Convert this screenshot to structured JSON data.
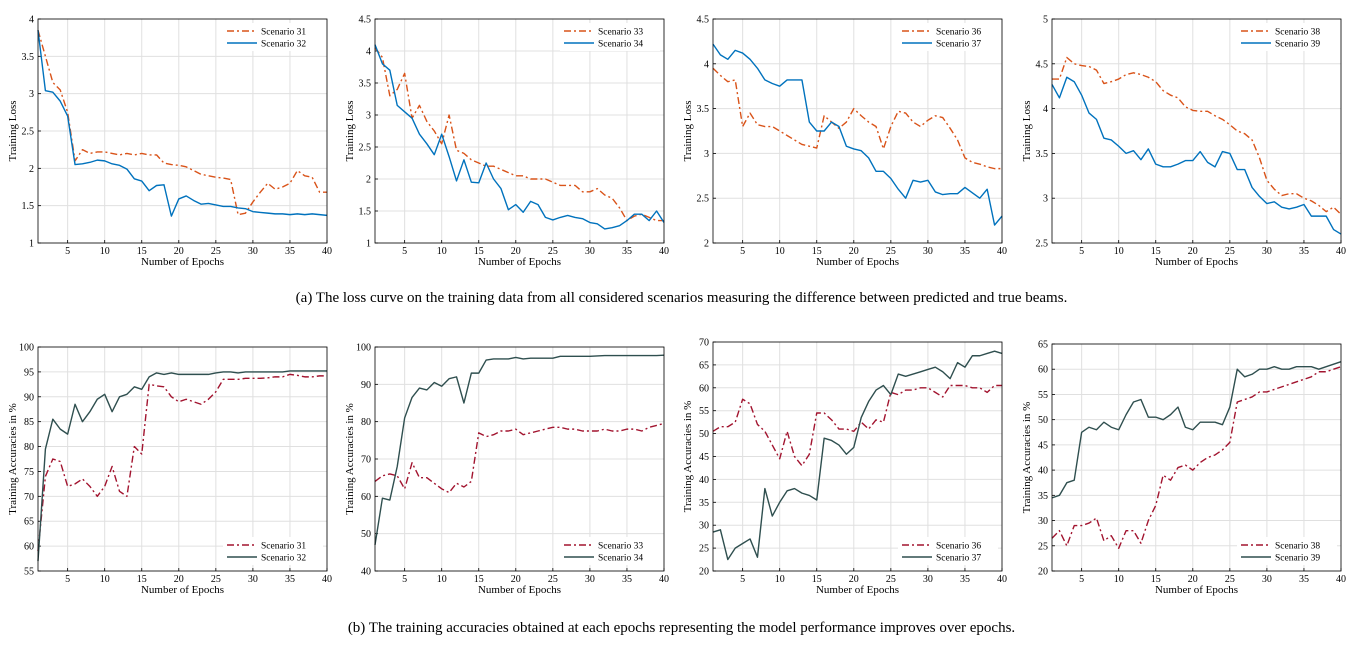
{
  "colors": {
    "scenario_a_odd": "#d95319",
    "scenario_a_even": "#0072bd",
    "scenario_b_odd": "#a2142f",
    "scenario_b_even": "#2f4f4f",
    "grid": "#e0e0e0"
  },
  "captions": {
    "a": "(a) The loss curve on the training data from all considered scenarios measuring the difference between predicted and true beams.",
    "b": "(b) The training accuracies obtained at each epochs representing the model performance improves over epochs."
  },
  "chart_data": [
    {
      "type": "line",
      "xlabel": "Number of Epochs",
      "ylabel": "Training Loss",
      "xlim": [
        1,
        40
      ],
      "ylim": [
        1,
        4
      ],
      "xticks": [
        5,
        10,
        15,
        20,
        25,
        30,
        35,
        40
      ],
      "yticks": [
        1,
        1.5,
        2,
        2.5,
        3,
        3.5,
        4
      ],
      "legend": "top-right",
      "grid": true,
      "series": [
        {
          "name": "Scenario 31",
          "style": "dashdot",
          "color": "#d95319",
          "y": [
            3.85,
            3.5,
            3.15,
            3.05,
            2.75,
            2.1,
            2.25,
            2.2,
            2.22,
            2.22,
            2.2,
            2.18,
            2.2,
            2.18,
            2.2,
            2.18,
            2.18,
            2.07,
            2.05,
            2.04,
            2.02,
            1.97,
            1.92,
            1.9,
            1.88,
            1.87,
            1.85,
            1.38,
            1.4,
            1.55,
            1.68,
            1.8,
            1.72,
            1.75,
            1.8,
            1.97,
            1.9,
            1.88,
            1.68,
            1.68
          ]
        },
        {
          "name": "Scenario 32",
          "style": "solid",
          "color": "#0072bd",
          "y": [
            3.85,
            3.04,
            3.02,
            2.9,
            2.7,
            2.05,
            2.06,
            2.08,
            2.11,
            2.1,
            2.06,
            2.04,
            1.99,
            1.86,
            1.83,
            1.7,
            1.77,
            1.78,
            1.36,
            1.59,
            1.63,
            1.57,
            1.52,
            1.53,
            1.51,
            1.49,
            1.49,
            1.47,
            1.46,
            1.42,
            1.41,
            1.4,
            1.39,
            1.39,
            1.38,
            1.39,
            1.38,
            1.39,
            1.38,
            1.37
          ]
        }
      ]
    },
    {
      "type": "line",
      "xlabel": "Number of Epochs",
      "ylabel": "Training Loss",
      "xlim": [
        1,
        40
      ],
      "ylim": [
        1,
        4.5
      ],
      "xticks": [
        5,
        10,
        15,
        20,
        25,
        30,
        35,
        40
      ],
      "yticks": [
        1,
        1.5,
        2,
        2.5,
        3,
        3.5,
        4,
        4.5
      ],
      "legend": "top-right",
      "grid": true,
      "series": [
        {
          "name": "Scenario 33",
          "style": "dashdot",
          "color": "#d95319",
          "y": [
            4.05,
            3.9,
            3.3,
            3.4,
            3.65,
            2.95,
            3.15,
            2.9,
            2.75,
            2.55,
            3.0,
            2.45,
            2.4,
            2.3,
            2.25,
            2.2,
            2.2,
            2.15,
            2.1,
            2.05,
            2.05,
            2.0,
            2.0,
            2.0,
            1.95,
            1.9,
            1.9,
            1.9,
            1.8,
            1.8,
            1.85,
            1.75,
            1.7,
            1.55,
            1.35,
            1.42,
            1.45,
            1.4,
            1.35,
            1.35
          ]
        },
        {
          "name": "Scenario 34",
          "style": "solid",
          "color": "#0072bd",
          "y": [
            4.1,
            3.8,
            3.7,
            3.15,
            3.05,
            2.95,
            2.7,
            2.55,
            2.38,
            2.7,
            2.35,
            1.97,
            2.3,
            1.95,
            1.94,
            2.25,
            2.0,
            1.85,
            1.52,
            1.6,
            1.48,
            1.65,
            1.6,
            1.4,
            1.36,
            1.4,
            1.43,
            1.4,
            1.38,
            1.32,
            1.3,
            1.22,
            1.24,
            1.27,
            1.35,
            1.45,
            1.45,
            1.35,
            1.5,
            1.32
          ]
        }
      ]
    },
    {
      "type": "line",
      "xlabel": "Number of Epochs",
      "ylabel": "Training Loss",
      "xlim": [
        1,
        40
      ],
      "ylim": [
        2,
        4.5
      ],
      "xticks": [
        5,
        10,
        15,
        20,
        25,
        30,
        35,
        40
      ],
      "yticks": [
        2,
        2.5,
        3,
        3.5,
        4,
        4.5
      ],
      "legend": "top-right",
      "grid": true,
      "series": [
        {
          "name": "Scenario 36",
          "style": "dashdot",
          "color": "#d95319",
          "y": [
            3.95,
            3.87,
            3.8,
            3.82,
            3.3,
            3.45,
            3.32,
            3.3,
            3.3,
            3.25,
            3.2,
            3.15,
            3.1,
            3.08,
            3.06,
            3.42,
            3.35,
            3.28,
            3.35,
            3.5,
            3.42,
            3.35,
            3.3,
            3.05,
            3.3,
            3.47,
            3.45,
            3.35,
            3.3,
            3.37,
            3.42,
            3.4,
            3.28,
            3.15,
            2.95,
            2.9,
            2.88,
            2.85,
            2.83,
            2.83
          ]
        },
        {
          "name": "Scenario 37",
          "style": "solid",
          "color": "#0072bd",
          "y": [
            4.22,
            4.1,
            4.05,
            4.15,
            4.12,
            4.05,
            3.95,
            3.82,
            3.78,
            3.75,
            3.82,
            3.82,
            3.82,
            3.35,
            3.25,
            3.25,
            3.35,
            3.3,
            3.08,
            3.05,
            3.03,
            2.95,
            2.8,
            2.8,
            2.72,
            2.6,
            2.5,
            2.7,
            2.68,
            2.7,
            2.57,
            2.54,
            2.55,
            2.55,
            2.62,
            2.56,
            2.5,
            2.6,
            2.2,
            2.3
          ]
        }
      ]
    },
    {
      "type": "line",
      "xlabel": "Number of Epochs",
      "ylabel": "Training Loss",
      "xlim": [
        1,
        40
      ],
      "ylim": [
        2.5,
        5
      ],
      "xticks": [
        5,
        10,
        15,
        20,
        25,
        30,
        35,
        40
      ],
      "yticks": [
        2.5,
        3,
        3.5,
        4,
        4.5,
        5
      ],
      "legend": "top-right",
      "grid": true,
      "series": [
        {
          "name": "Scenario 38",
          "style": "dashdot",
          "color": "#d95319",
          "y": [
            4.33,
            4.33,
            4.57,
            4.5,
            4.48,
            4.47,
            4.43,
            4.28,
            4.3,
            4.33,
            4.38,
            4.4,
            4.38,
            4.35,
            4.3,
            4.2,
            4.15,
            4.12,
            4.02,
            3.98,
            3.97,
            3.97,
            3.92,
            3.88,
            3.82,
            3.75,
            3.72,
            3.65,
            3.45,
            3.2,
            3.1,
            3.03,
            3.05,
            3.05,
            3.0,
            2.97,
            2.92,
            2.85,
            2.9,
            2.82
          ]
        },
        {
          "name": "Scenario 39",
          "style": "solid",
          "color": "#0072bd",
          "y": [
            4.27,
            4.12,
            4.35,
            4.3,
            4.15,
            3.95,
            3.88,
            3.67,
            3.65,
            3.58,
            3.5,
            3.53,
            3.43,
            3.55,
            3.38,
            3.35,
            3.35,
            3.38,
            3.42,
            3.42,
            3.52,
            3.4,
            3.35,
            3.52,
            3.5,
            3.32,
            3.32,
            3.12,
            3.02,
            2.94,
            2.96,
            2.9,
            2.88,
            2.9,
            2.93,
            2.8,
            2.8,
            2.8,
            2.65,
            2.6
          ]
        }
      ]
    },
    {
      "type": "line",
      "xlabel": "Number of Epochs",
      "ylabel": "Training Accuracies in %",
      "xlim": [
        1,
        40
      ],
      "ylim": [
        55,
        100
      ],
      "xticks": [
        5,
        10,
        15,
        20,
        25,
        30,
        35,
        40
      ],
      "yticks": [
        55,
        60,
        65,
        70,
        75,
        80,
        85,
        90,
        95,
        100
      ],
      "legend": "bottom-right",
      "grid": true,
      "series": [
        {
          "name": "Scenario 31",
          "style": "dashdot",
          "color": "#a2142f",
          "y": [
            59,
            74,
            77.5,
            77,
            72,
            72.5,
            73.5,
            72,
            70,
            72,
            76,
            71,
            70,
            80,
            78.5,
            92.5,
            92.2,
            92,
            90,
            89,
            89.5,
            89,
            88.5,
            89.5,
            91,
            93.5,
            93.5,
            93.5,
            93.7,
            93.7,
            93.7,
            93.8,
            94,
            94,
            94.5,
            94.3,
            94,
            94,
            94.2,
            94.2
          ]
        },
        {
          "name": "Scenario 32",
          "style": "solid",
          "color": "#2f4f4f",
          "y": [
            57,
            79.5,
            85.5,
            83.5,
            82.5,
            88.5,
            85,
            87,
            89.5,
            90.5,
            87,
            90,
            90.5,
            92,
            91.5,
            94,
            94.8,
            94.5,
            94.8,
            94.5,
            94.5,
            94.5,
            94.5,
            94.5,
            94.8,
            95,
            95,
            94.8,
            95,
            95,
            95,
            95,
            95,
            95,
            95.2,
            95.2,
            95.2,
            95.2,
            95.2,
            95.2
          ]
        }
      ]
    },
    {
      "type": "line",
      "xlabel": "Number of Epochs",
      "ylabel": "Training Accuracies in %",
      "xlim": [
        1,
        40
      ],
      "ylim": [
        40,
        100
      ],
      "xticks": [
        5,
        10,
        15,
        20,
        25,
        30,
        35,
        40
      ],
      "yticks": [
        40,
        50,
        60,
        70,
        80,
        90,
        100
      ],
      "legend": "bottom-right",
      "grid": true,
      "series": [
        {
          "name": "Scenario 33",
          "style": "dashdot",
          "color": "#a2142f",
          "y": [
            64,
            65.5,
            66,
            65.5,
            62,
            69,
            65,
            65,
            63.5,
            62,
            61,
            63.5,
            62.5,
            64,
            77,
            76,
            76.5,
            77.5,
            77.5,
            78,
            76.5,
            77,
            77.5,
            78,
            78.5,
            78.5,
            78,
            78,
            77.5,
            77.5,
            77.5,
            78,
            77.5,
            77.5,
            78,
            78,
            77.5,
            78.5,
            79,
            79.5
          ]
        },
        {
          "name": "Scenario 34",
          "style": "solid",
          "color": "#2f4f4f",
          "y": [
            47,
            59.5,
            59,
            68,
            81,
            86.5,
            89,
            88.5,
            90.5,
            89.5,
            91.5,
            92,
            85,
            93,
            93,
            96.5,
            96.8,
            96.8,
            96.8,
            97.2,
            96.8,
            97,
            97,
            97,
            97,
            97.5,
            97.5,
            97.5,
            97.5,
            97.5,
            97.6,
            97.7,
            97.7,
            97.7,
            97.7,
            97.7,
            97.7,
            97.7,
            97.7,
            97.8
          ]
        }
      ]
    },
    {
      "type": "line",
      "xlabel": "Number of Epochs",
      "ylabel": "Training Accuracies in %",
      "xlim": [
        1,
        40
      ],
      "ylim": [
        20,
        70
      ],
      "xticks": [
        5,
        10,
        15,
        20,
        25,
        30,
        35,
        40
      ],
      "yticks": [
        20,
        25,
        30,
        35,
        40,
        45,
        50,
        55,
        60,
        65,
        70
      ],
      "legend": "bottom-right",
      "grid": true,
      "series": [
        {
          "name": "Scenario 36",
          "style": "dashdot",
          "color": "#a2142f",
          "y": [
            50.5,
            51.5,
            51.5,
            52.5,
            57.5,
            56.5,
            52,
            50.5,
            47.5,
            44.5,
            50.5,
            45,
            43,
            45.5,
            54.5,
            54.5,
            53,
            51,
            51,
            50.5,
            52.5,
            51,
            53,
            52.5,
            59,
            58.5,
            59.5,
            59.5,
            60,
            60,
            59,
            58,
            60.5,
            60.5,
            60.5,
            60,
            60,
            59,
            60.5,
            60.5
          ]
        },
        {
          "name": "Scenario 37",
          "style": "solid",
          "color": "#2f4f4f",
          "y": [
            28.5,
            29,
            22.5,
            25,
            26,
            27,
            23,
            38,
            32,
            35,
            37.5,
            38,
            37,
            36.5,
            35.5,
            49,
            48.5,
            47.5,
            45.5,
            47,
            53.5,
            57,
            59.5,
            60.5,
            58.5,
            63,
            62.5,
            63,
            63.5,
            64,
            64.5,
            63.5,
            62,
            65.5,
            64.5,
            67,
            67,
            67.5,
            68,
            67.5
          ]
        }
      ]
    },
    {
      "type": "line",
      "xlabel": "Number of Epochs",
      "ylabel": "Training Accuracies in %",
      "xlim": [
        1,
        40
      ],
      "ylim": [
        20,
        65
      ],
      "xticks": [
        5,
        10,
        15,
        20,
        25,
        30,
        35,
        40
      ],
      "yticks": [
        20,
        25,
        30,
        35,
        40,
        45,
        50,
        55,
        60,
        65
      ],
      "legend": "bottom-right",
      "grid": true,
      "series": [
        {
          "name": "Scenario 38",
          "style": "dashdot",
          "color": "#a2142f",
          "y": [
            26.5,
            28,
            25,
            29,
            29,
            29.5,
            30.5,
            26,
            27,
            24.5,
            28,
            28,
            25.5,
            30,
            33,
            39,
            38,
            40.5,
            41,
            40,
            41.5,
            42.5,
            43,
            44,
            45.5,
            53.5,
            54,
            54.5,
            55.5,
            55.5,
            56,
            56.5,
            57,
            57.5,
            58,
            58.5,
            59.5,
            59.5,
            60,
            60.5
          ]
        },
        {
          "name": "Scenario 39",
          "style": "solid",
          "color": "#2f4f4f",
          "y": [
            34.5,
            35,
            37.5,
            38,
            47.5,
            48.5,
            48,
            49.5,
            48.5,
            48,
            51,
            53.5,
            54,
            50.5,
            50.5,
            50,
            51,
            52.5,
            48.5,
            48,
            49.5,
            49.5,
            49.5,
            49,
            52.5,
            60,
            58.5,
            59,
            60,
            60,
            60.5,
            60,
            60,
            60.5,
            60.5,
            60.5,
            60,
            60.5,
            61,
            61.5
          ]
        }
      ]
    }
  ]
}
